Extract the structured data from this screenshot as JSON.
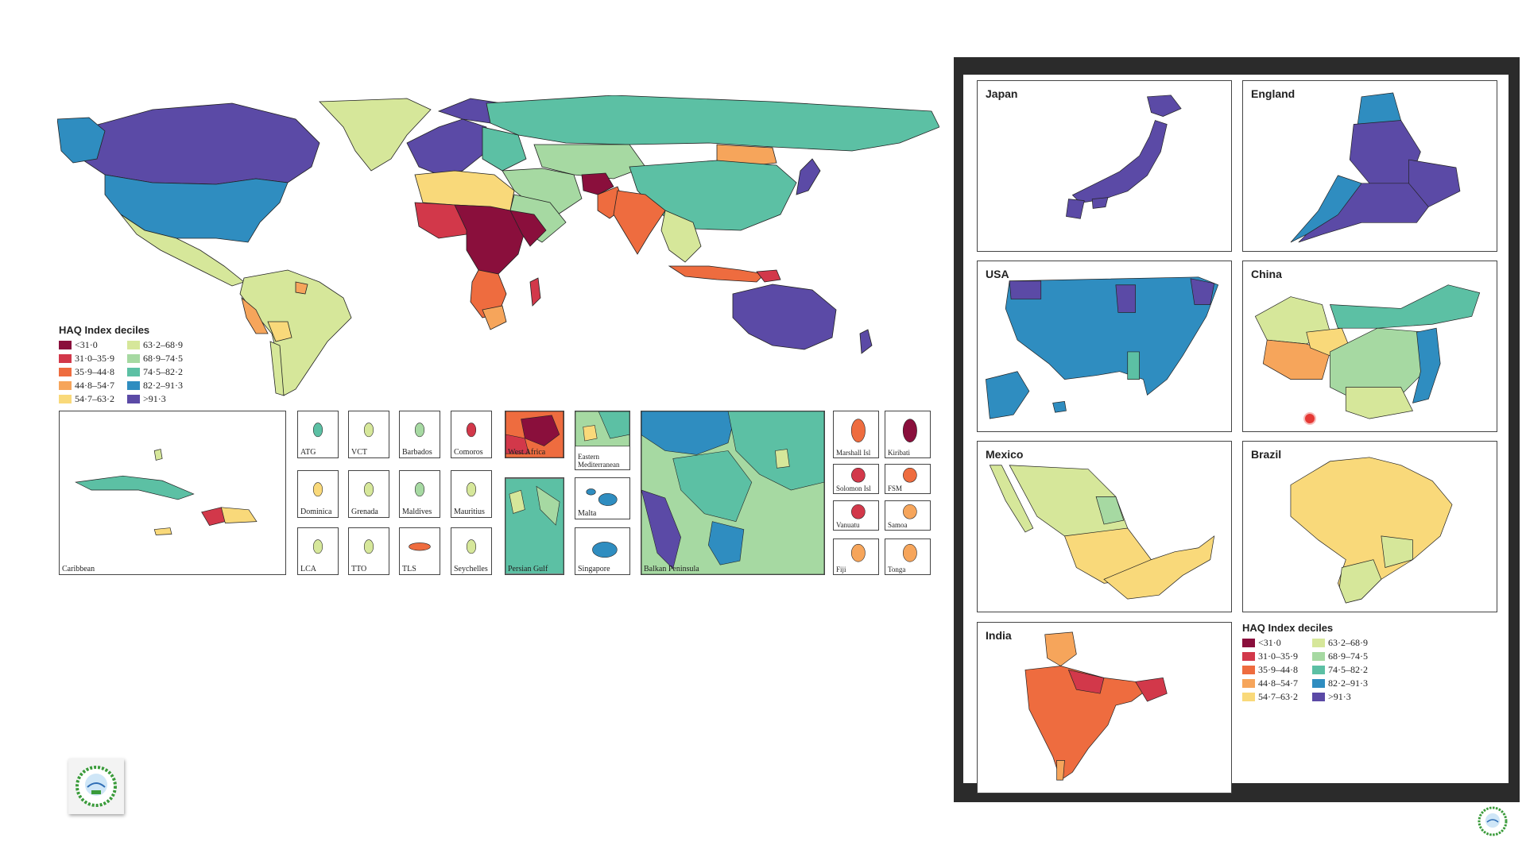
{
  "legend": {
    "title": "HAQ Index deciles",
    "items": [
      {
        "label": "<31·0",
        "color": "#8a0f3c"
      },
      {
        "label": "63·2–68·9",
        "color": "#d6e79a"
      },
      {
        "label": "31·0–35·9",
        "color": "#d2384a"
      },
      {
        "label": "68·9–74·5",
        "color": "#a6d9a2"
      },
      {
        "label": "35·9–44·8",
        "color": "#ee6c3f"
      },
      {
        "label": "74·5–82·2",
        "color": "#5cc0a4"
      },
      {
        "label": "44·8–54·7",
        "color": "#f6a55b"
      },
      {
        "label": "82·2–91·3",
        "color": "#2f8dc0"
      },
      {
        "label": "54·7–63·2",
        "color": "#f9d97a"
      },
      {
        "label": ">91·3",
        "color": "#5b4aa6"
      }
    ]
  },
  "insets": [
    {
      "label": "Caribbean"
    },
    {
      "label": "ATG"
    },
    {
      "label": "VCT"
    },
    {
      "label": "Barbados"
    },
    {
      "label": "Comoros"
    },
    {
      "label": "West Africa"
    },
    {
      "label": "Eastern Mediterranean"
    },
    {
      "label": "Dominica"
    },
    {
      "label": "Grenada"
    },
    {
      "label": "Maldives"
    },
    {
      "label": "Mauritius"
    },
    {
      "label": "Malta"
    },
    {
      "label": "LCA"
    },
    {
      "label": "TTO"
    },
    {
      "label": "TLS"
    },
    {
      "label": "Seychelles"
    },
    {
      "label": "Persian Gulf"
    },
    {
      "label": "Singapore"
    },
    {
      "label": "Balkan Peninsula"
    },
    {
      "label": "Marshall Isl"
    },
    {
      "label": "Kiribati"
    },
    {
      "label": "Solomon Isl"
    },
    {
      "label": "FSM"
    },
    {
      "label": "Vanuatu"
    },
    {
      "label": "Samoa"
    },
    {
      "label": "Fiji"
    },
    {
      "label": "Tonga"
    }
  ],
  "panels": [
    {
      "title": "Japan"
    },
    {
      "title": "England"
    },
    {
      "title": "USA"
    },
    {
      "title": "China"
    },
    {
      "title": "Mexico"
    },
    {
      "title": "Brazil"
    },
    {
      "title": "India"
    }
  ],
  "icons": {
    "logo": "institution-logo-icon",
    "corner": "watermark-logo-icon"
  }
}
